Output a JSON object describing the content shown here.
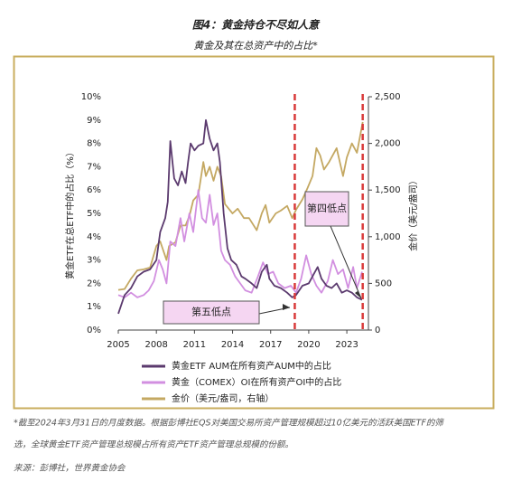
{
  "chart_data": {
    "type": "line",
    "title": "图4：黄金持仓不尽如人意",
    "subtitle": "黄金及其在总资产中的占比*",
    "y_label": "黄金ETF在总ETF中的占比（%）",
    "y2_label": "金价（美元/盎司）",
    "xlim": [
      2005,
      2024.7
    ],
    "xticks": [
      2005,
      2008,
      2011,
      2014,
      2017,
      2020,
      2023
    ],
    "ylim": [
      0,
      10
    ],
    "yticks": [
      {
        "value": 0,
        "label": "0%"
      },
      {
        "value": 1,
        "label": "1%"
      },
      {
        "value": 2,
        "label": "2%"
      },
      {
        "value": 3,
        "label": "3%"
      },
      {
        "value": 4,
        "label": "4%"
      },
      {
        "value": 5,
        "label": "5%"
      },
      {
        "value": 6,
        "label": "6%"
      },
      {
        "value": 7,
        "label": "7%"
      },
      {
        "value": 8,
        "label": "8%"
      },
      {
        "value": 9,
        "label": "9%"
      },
      {
        "value": 10,
        "label": "10%"
      }
    ],
    "y2lim": [
      0,
      2500
    ],
    "y2ticks": [
      0,
      500,
      {
        "value": 1000,
        "label": "1,000"
      },
      {
        "value": 1500,
        "label": "1,500"
      },
      {
        "value": 2000,
        "label": "2,000"
      },
      {
        "value": 2500,
        "label": "2,500"
      }
    ],
    "grid": false,
    "series": [
      {
        "name": "黄金ETF AUM在所有资产AUM中的占比",
        "color": "#5b3a6e",
        "x": [
          2005,
          2005.5,
          2006,
          2006.5,
          2007,
          2007.5,
          2008,
          2008.3,
          2008.7,
          2008.9,
          2009.1,
          2009.4,
          2009.7,
          2010,
          2010.3,
          2010.5,
          2010.7,
          2011,
          2011.3,
          2011.7,
          2011.9,
          2012.2,
          2012.5,
          2012.8,
          2013,
          2013.3,
          2013.6,
          2013.9,
          2014.3,
          2014.7,
          2015,
          2015.5,
          2015.9,
          2016.3,
          2016.7,
          2016.9,
          2017.3,
          2017.8,
          2018.3,
          2018.7,
          2019,
          2019.5,
          2020,
          2020.4,
          2020.7,
          2021,
          2021.4,
          2021.8,
          2022.2,
          2022.6,
          2023,
          2023.4,
          2023.8,
          2024.2
        ],
        "values": [
          0.7,
          1.5,
          1.8,
          2.3,
          2.5,
          2.6,
          3.0,
          4.2,
          4.8,
          5.5,
          8.1,
          6.5,
          6.2,
          6.8,
          6.3,
          7.2,
          8.0,
          7.7,
          7.9,
          8.0,
          9.0,
          8.2,
          7.7,
          8.0,
          7.2,
          5.0,
          3.5,
          3.0,
          2.8,
          2.3,
          2.2,
          2.0,
          1.8,
          2.5,
          2.8,
          2.2,
          1.9,
          1.8,
          1.6,
          1.4,
          1.5,
          1.9,
          2.0,
          2.4,
          2.7,
          2.2,
          1.9,
          1.8,
          2.0,
          1.6,
          1.7,
          1.6,
          1.4,
          1.3
        ]
      },
      {
        "name": "黄金（COMEX）OI在所有资产OI中的占比",
        "color": "#d28fe0",
        "x": [
          2005,
          2005.5,
          2006,
          2006.5,
          2007,
          2007.4,
          2007.8,
          2008.2,
          2008.5,
          2008.8,
          2009.1,
          2009.5,
          2009.9,
          2010.2,
          2010.6,
          2010.9,
          2011.3,
          2011.6,
          2011.9,
          2012.2,
          2012.5,
          2012.8,
          2013.1,
          2013.4,
          2013.8,
          2014.2,
          2014.6,
          2015,
          2015.5,
          2016,
          2016.4,
          2016.8,
          2017.2,
          2017.6,
          2018.1,
          2018.6,
          2019,
          2019.4,
          2019.8,
          2020.2,
          2020.6,
          2021,
          2021.5,
          2021.9,
          2022.3,
          2022.7,
          2023.1,
          2023.5,
          2023.8,
          2024.2
        ],
        "values": [
          1.5,
          1.4,
          1.6,
          1.4,
          1.5,
          1.7,
          2.1,
          3.0,
          2.6,
          2.0,
          3.8,
          3.6,
          4.8,
          3.8,
          5.0,
          4.2,
          6.0,
          4.8,
          4.6,
          5.8,
          4.5,
          5.0,
          3.4,
          3.0,
          2.8,
          2.3,
          2.0,
          1.7,
          1.6,
          2.3,
          2.9,
          2.4,
          2.5,
          2.0,
          1.8,
          1.9,
          1.6,
          2.2,
          3.2,
          2.4,
          1.9,
          1.6,
          2.1,
          3.0,
          2.4,
          2.6,
          1.8,
          2.7,
          1.8,
          2.5
        ]
      },
      {
        "name": "金价（美元/盎司，右轴）",
        "color": "#c4a862",
        "axis": "y2",
        "x": [
          2005,
          2005.5,
          2006,
          2006.5,
          2007,
          2007.5,
          2008,
          2008.3,
          2008.8,
          2009,
          2009.5,
          2009.9,
          2010.3,
          2010.6,
          2010.9,
          2011.3,
          2011.7,
          2011.9,
          2012.2,
          2012.5,
          2012.8,
          2013.1,
          2013.4,
          2013.7,
          2014,
          2014.4,
          2014.9,
          2015.3,
          2015.9,
          2016.3,
          2016.6,
          2016.9,
          2017.4,
          2017.8,
          2018.3,
          2018.7,
          2019,
          2019.5,
          2019.9,
          2020.3,
          2020.6,
          2020.9,
          2021.2,
          2021.6,
          2022.2,
          2022.7,
          2023,
          2023.4,
          2023.8,
          2024.25
        ],
        "values": [
          430,
          440,
          550,
          640,
          650,
          670,
          900,
          950,
          750,
          900,
          940,
          1120,
          1120,
          1220,
          1390,
          1450,
          1800,
          1650,
          1750,
          1600,
          1750,
          1650,
          1350,
          1300,
          1250,
          1300,
          1200,
          1200,
          1070,
          1250,
          1340,
          1150,
          1250,
          1280,
          1330,
          1200,
          1290,
          1400,
          1520,
          1650,
          1950,
          1870,
          1720,
          1800,
          1950,
          1650,
          1850,
          2000,
          1900,
          2230
        ]
      }
    ],
    "reference_lines": [
      {
        "x": 2018.9,
        "color": "#d93a3a"
      },
      {
        "x": 2024.25,
        "color": "#d93a3a"
      }
    ],
    "annotations": [
      {
        "text": "第四低点"
      },
      {
        "text": "第五低点"
      }
    ],
    "notes": [
      "*截至2024年3月31日的月度数据。根据彭博社EQS对美国交易所资产管理规模超过10亿美元的活跃美国ETF的筛",
      "选，全球黄金ETF资产管理总规模占所有资产ETF资产管理总规模的份额。",
      "来源：彭博社，世界黄金协会"
    ]
  }
}
